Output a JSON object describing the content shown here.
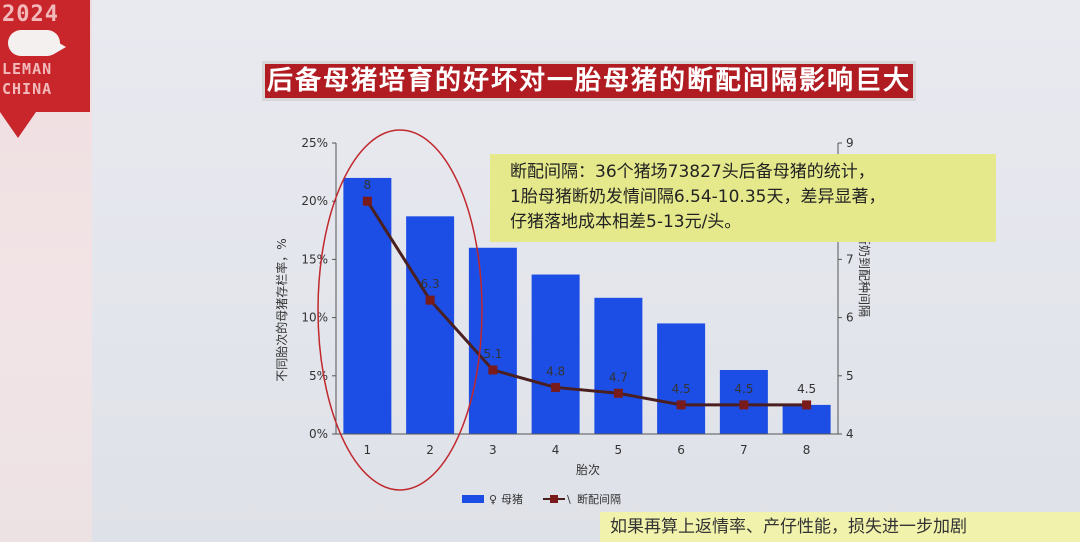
{
  "logo": {
    "year_text": "2024",
    "line1": "LEMAN",
    "line2": "CHINA"
  },
  "title": "后备母猪培育的好坏对一胎母猪的断配间隔影响巨大",
  "callout": {
    "line1": "断配间隔：36个猪场73827头后备母猪的统计，",
    "line2": "1胎母猪断奶发情间隔6.54-10.35天，差异显著，",
    "line3": "仔猪落地成本相差5-13元/头。"
  },
  "footer_note": "如果再算上返情率、产仔性能，损失进一步加剧",
  "colors": {
    "bar": "#1c4ee6",
    "line": "#4a1f1f",
    "marker": "#7a1b1b",
    "highlight_ellipse": "#c0282c",
    "title_bg": "#b01c22",
    "callout_bg": "#e5e98c"
  },
  "chart_data": {
    "type": "bar",
    "categories": [
      "1",
      "2",
      "3",
      "4",
      "5",
      "6",
      "7",
      "8"
    ],
    "xlabel": "胎次",
    "ylabel": "不同胎次的母猪存栏率，%",
    "ylabel_right": "断奶到配种间隔",
    "ylim": [
      0,
      25
    ],
    "y_ticks": [
      "0%",
      "5%",
      "10%",
      "15%",
      "20%",
      "25%"
    ],
    "ylim_right": [
      4,
      9
    ],
    "y_ticks_right": [
      "4",
      "5",
      "6",
      "7",
      "8",
      "9"
    ],
    "grid": false,
    "legend_position": "bottom",
    "series": [
      {
        "name": "母猪",
        "type": "bar",
        "axis": "left",
        "values": [
          22,
          18.7,
          16,
          13.7,
          11.7,
          9.5,
          5.5,
          2.5
        ]
      },
      {
        "name": "断配间隔",
        "type": "line",
        "axis": "right",
        "values": [
          8,
          6.3,
          5.1,
          4.8,
          4.7,
          4.5,
          4.5,
          4.5
        ],
        "labels": [
          "8",
          "6.3",
          "5.1",
          "4.8",
          "4.7",
          "4.5",
          "4.5",
          "4.5"
        ]
      }
    ],
    "legend": [
      {
        "symbol": "♀",
        "label": "母猪"
      },
      {
        "symbol": "\\",
        "label": "断配间隔"
      }
    ]
  }
}
